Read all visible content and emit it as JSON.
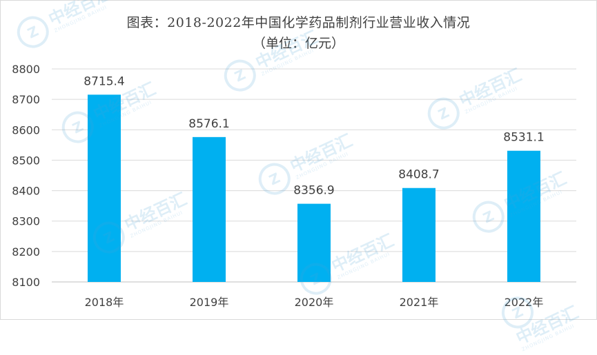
{
  "chart_data": {
    "type": "bar",
    "title": "图表：2018-2022年中国化学药品制剂行业营业收入情况",
    "subtitle": "（单位：亿元）",
    "categories": [
      "2018年",
      "2019年",
      "2020年",
      "2021年",
      "2022年"
    ],
    "values": [
      8715.4,
      8576.1,
      8356.9,
      8408.7,
      8531.1
    ],
    "value_labels": [
      "8715.4",
      "8576.1",
      "8356.9",
      "8408.7",
      "8531.1"
    ],
    "ylim": [
      8100,
      8800
    ],
    "yticks": [
      8100,
      8200,
      8300,
      8400,
      8500,
      8600,
      8700,
      8800
    ],
    "xlabel": "",
    "ylabel": "",
    "grid": true,
    "bar_color": "#00B0F0"
  },
  "watermark": {
    "brand": "中经百汇",
    "brand_en": "ZHONGJING BAIHUI",
    "logo_letter": "Z",
    "color": "#4fa3d8"
  }
}
